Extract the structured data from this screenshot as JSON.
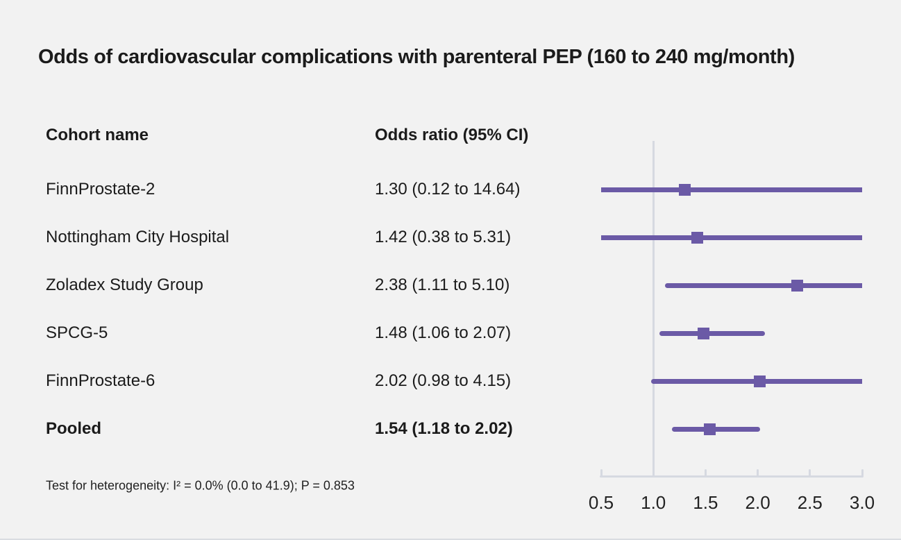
{
  "chart_data": {
    "type": "forest",
    "title": "Odds of cardiovascular complications with parenteral PEP (160 to 240 mg/month)",
    "columns": [
      "Cohort name",
      "Odds ratio (95% CI)"
    ],
    "rows": [
      {
        "cohort": "FinnProstate-2",
        "label": "1.30 (0.12 to 14.64)",
        "or": 1.3,
        "ci_low": 0.12,
        "ci_high": 14.64,
        "bold": false
      },
      {
        "cohort": "Nottingham City Hospital",
        "label": "1.42 (0.38 to 5.31)",
        "or": 1.42,
        "ci_low": 0.38,
        "ci_high": 5.31,
        "bold": false
      },
      {
        "cohort": "Zoladex Study Group",
        "label": "2.38 (1.11 to 5.10)",
        "or": 2.38,
        "ci_low": 1.11,
        "ci_high": 5.1,
        "bold": false
      },
      {
        "cohort": "SPCG-5",
        "label": "1.48 (1.06 to 2.07)",
        "or": 1.48,
        "ci_low": 1.06,
        "ci_high": 2.07,
        "bold": false
      },
      {
        "cohort": "FinnProstate-6",
        "label": "2.02 (0.98 to 4.15)",
        "or": 2.02,
        "ci_low": 0.98,
        "ci_high": 4.15,
        "bold": false
      },
      {
        "cohort": "Pooled",
        "label": "1.54 (1.18 to 2.02)",
        "or": 1.54,
        "ci_low": 1.18,
        "ci_high": 2.02,
        "bold": true
      }
    ],
    "x_axis": {
      "scale": "linear",
      "min": 0.5,
      "max": 3.0,
      "ticks": [
        "0.5",
        "1.0",
        "1.5",
        "2.0",
        "2.5",
        "3.0"
      ],
      "reference_line": 1.0
    },
    "footnote": "Test for heterogeneity: I² = 0.0% (0.0 to 41.9); P = 0.853",
    "legend_position": "none",
    "grid": false,
    "colors": {
      "marker": "#6B5AA6",
      "ci_line": "#6B5AA6",
      "axis": "#D6D9E1",
      "text": "#1B1B1B",
      "background": "#F2F2F2"
    }
  }
}
